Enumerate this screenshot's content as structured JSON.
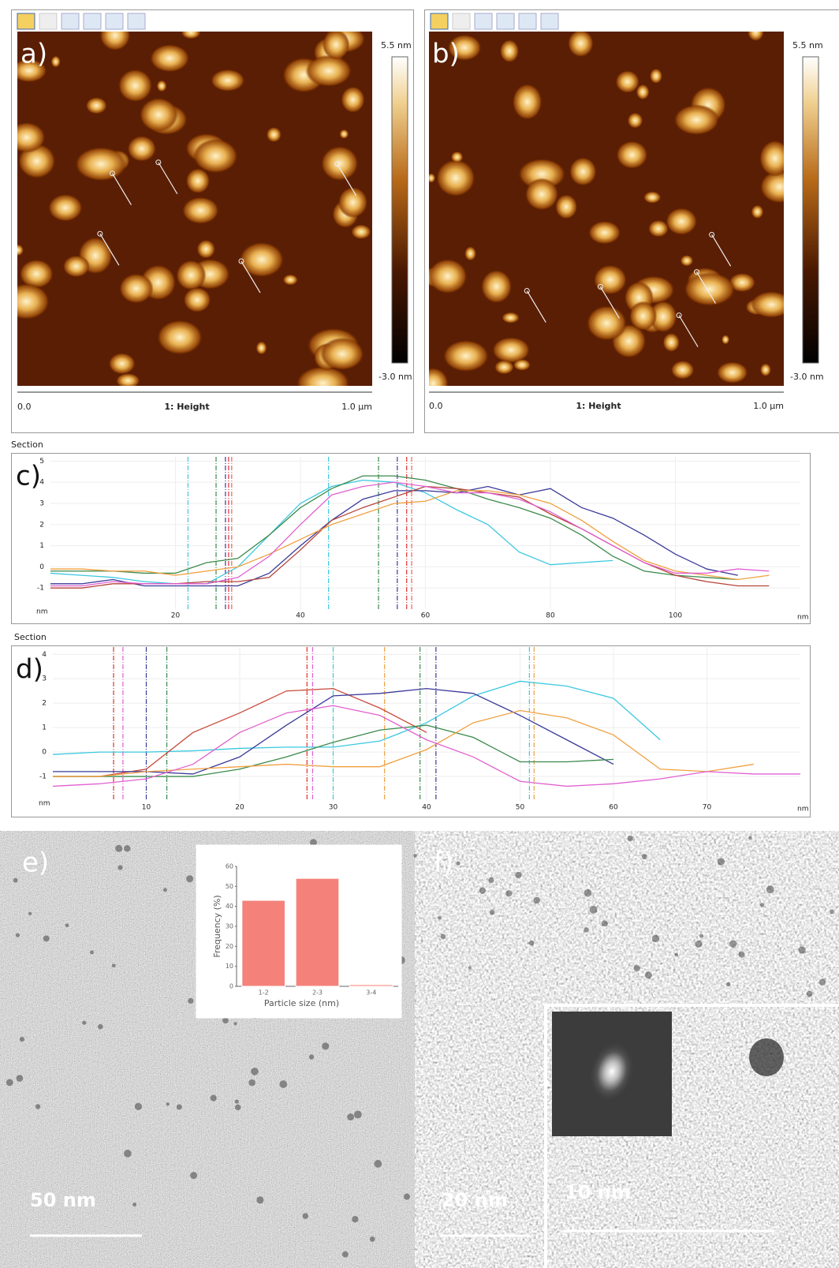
{
  "panels": {
    "a": {
      "label": "a)",
      "scale_max": "5.5 nm",
      "scale_min": "-3.0 nm",
      "axis_start": "0.0",
      "channel": "1: Height",
      "axis_end": "1.0 µm"
    },
    "b": {
      "label": "b)",
      "scale_max": "5.5 nm",
      "scale_min": "-3.0 nm",
      "axis_start": "0.0",
      "channel": "1: Height",
      "axis_end": "1.0 µm"
    },
    "e": {
      "label": "e)",
      "scale_bar": "50 nm"
    },
    "f": {
      "label": "f)",
      "scale_bar": "20 nm",
      "inset_scale_bar": "10 nm"
    }
  },
  "chart_data": [
    {
      "type": "line",
      "title": "Section",
      "label": "c)",
      "xlabel": "nm",
      "ylabel": "nm",
      "grid": true,
      "xlim": [
        0,
        120
      ],
      "ylim": [
        -2,
        5.2
      ],
      "xticks": [
        20,
        40,
        60,
        80,
        100
      ],
      "yticks": [
        -1,
        0,
        1,
        2,
        3,
        4,
        5
      ],
      "x": [
        0,
        5,
        10,
        15,
        20,
        25,
        30,
        35,
        40,
        45,
        50,
        55,
        60,
        65,
        70,
        75,
        80,
        85,
        90,
        95,
        100,
        105,
        110,
        115
      ],
      "series": [
        {
          "color": "#3cc8e0",
          "values": [
            -0.3,
            -0.4,
            -0.5,
            -0.7,
            -0.8,
            -0.8,
            0,
            1.5,
            3,
            3.8,
            4.1,
            4.0,
            3.5,
            2.7,
            2.0,
            0.7,
            0.1,
            0.2,
            0.3,
            null,
            null,
            null,
            null,
            null
          ]
        },
        {
          "color": "#3a8a4a",
          "values": [
            -0.2,
            -0.2,
            -0.2,
            -0.3,
            -0.3,
            0.2,
            0.4,
            1.5,
            2.8,
            3.7,
            4.3,
            4.3,
            4.1,
            3.7,
            3.2,
            2.8,
            2.3,
            1.5,
            0.5,
            -0.2,
            -0.4,
            -0.5,
            -0.6,
            null
          ]
        },
        {
          "color": "#3a3a9a",
          "values": [
            -0.8,
            -0.8,
            -0.6,
            -0.9,
            -0.9,
            -0.9,
            -0.9,
            -0.3,
            1.0,
            2.2,
            3.2,
            3.6,
            3.6,
            3.5,
            3.8,
            3.4,
            3.7,
            2.8,
            2.3,
            1.5,
            0.6,
            -0.1,
            -0.4,
            null
          ]
        },
        {
          "color": "#b5443a",
          "values": [
            -1,
            -1,
            -0.8,
            -0.8,
            -0.8,
            -0.7,
            -0.7,
            -0.5,
            0.8,
            2.2,
            2.8,
            3.3,
            3.8,
            3.7,
            3.5,
            3.3,
            2.5,
            1.8,
            1.0,
            0.2,
            -0.4,
            -0.7,
            -0.9,
            -0.9
          ]
        },
        {
          "color": "#f0a040",
          "values": [
            -0.1,
            -0.1,
            -0.2,
            -0.2,
            -0.4,
            -0.2,
            0,
            0.6,
            1.3,
            2.0,
            2.5,
            3.0,
            3.1,
            3.6,
            3.6,
            3.4,
            3.0,
            2.2,
            1.2,
            0.3,
            -0.2,
            -0.4,
            -0.6,
            -0.4
          ]
        },
        {
          "color": "#e060d0",
          "values": [
            -0.9,
            -0.9,
            -0.7,
            -0.8,
            -0.8,
            -0.8,
            -0.5,
            0.5,
            2.0,
            3.4,
            3.8,
            4.0,
            3.8,
            3.5,
            3.5,
            3.2,
            2.6,
            1.8,
            1.0,
            0.2,
            -0.3,
            -0.3,
            -0.1,
            -0.2
          ]
        }
      ],
      "cursors": [
        {
          "color": "#3cc8e0",
          "x": [
            22,
            44.5
          ]
        },
        {
          "color": "#3a8a4a",
          "x": [
            26.5,
            52.5
          ]
        },
        {
          "color": "#3a3a9a",
          "x": [
            28,
            55.5
          ]
        },
        {
          "color": "#e03030",
          "x": [
            28.5,
            57
          ]
        },
        {
          "color": "#f06060",
          "x": [
            29,
            57.8
          ]
        }
      ]
    },
    {
      "type": "line",
      "title": "Section",
      "label": "d)",
      "xlabel": "nm",
      "ylabel": "nm",
      "grid": true,
      "xlim": [
        0,
        80
      ],
      "ylim": [
        -2,
        4.3
      ],
      "xticks": [
        10,
        20,
        30,
        40,
        50,
        60,
        70
      ],
      "yticks": [
        -1,
        0,
        1,
        2,
        3,
        4
      ],
      "x": [
        0,
        5,
        10,
        15,
        20,
        25,
        30,
        35,
        40,
        45,
        50,
        55,
        60,
        65,
        70,
        75,
        80
      ],
      "series": [
        {
          "color": "#3cc8e0",
          "values": [
            -0.1,
            0,
            0,
            0.05,
            0.15,
            0.2,
            0.2,
            0.45,
            1.2,
            2.3,
            2.9,
            2.7,
            2.2,
            0.5,
            null,
            null,
            null
          ]
        },
        {
          "color": "#c84a3c",
          "values": [
            -1,
            -1,
            -0.7,
            0.8,
            1.6,
            2.5,
            2.6,
            1.8,
            0.8,
            null,
            null,
            null,
            null,
            null,
            null,
            null,
            null
          ]
        },
        {
          "color": "#3a3a9a",
          "values": [
            -0.8,
            -0.8,
            -0.8,
            -0.9,
            -0.2,
            1.1,
            2.3,
            2.4,
            2.6,
            2.4,
            1.5,
            0.5,
            -0.5,
            null,
            null,
            null,
            null
          ]
        },
        {
          "color": "#3a8a4a",
          "values": [
            -1,
            -1,
            -1,
            -1,
            -0.7,
            -0.2,
            0.4,
            0.9,
            1.1,
            0.6,
            -0.4,
            -0.4,
            -0.3,
            null,
            null,
            null,
            null
          ]
        },
        {
          "color": "#f0a040",
          "values": [
            -1,
            -1,
            -0.8,
            -0.7,
            -0.6,
            -0.5,
            -0.6,
            -0.6,
            0.1,
            1.2,
            1.7,
            1.4,
            0.7,
            -0.7,
            -0.8,
            -0.5,
            null
          ]
        },
        {
          "color": "#e060d0",
          "values": [
            -1.4,
            -1.3,
            -1.1,
            -0.5,
            0.8,
            1.6,
            1.9,
            1.5,
            0.5,
            -0.2,
            -1.2,
            -1.4,
            -1.3,
            -1.1,
            -0.8,
            -0.9,
            -0.9
          ]
        }
      ],
      "cursors": [
        {
          "color": "#e03030",
          "x": [
            6.5,
            27.2
          ]
        },
        {
          "color": "#e060d0",
          "x": [
            7.5,
            27.8
          ]
        },
        {
          "color": "#3a3a9a",
          "x": [
            10,
            41
          ]
        },
        {
          "color": "#3a8a4a",
          "x": [
            12.2,
            39.3
          ]
        },
        {
          "color": "#3cc8e0",
          "x": [
            30,
            51
          ]
        },
        {
          "color": "#f0a040",
          "x": [
            35.5,
            51.5
          ]
        }
      ]
    },
    {
      "type": "bar",
      "xlabel": "Particle size (nm)",
      "ylabel": "Frequency (%)",
      "color": "#f4827a",
      "categories": [
        "1-2",
        "2-3",
        "3-4"
      ],
      "values": [
        43,
        54,
        0.8
      ],
      "ylim": [
        0,
        60
      ],
      "yticks": [
        0,
        10,
        20,
        30,
        40,
        50,
        60
      ]
    }
  ]
}
